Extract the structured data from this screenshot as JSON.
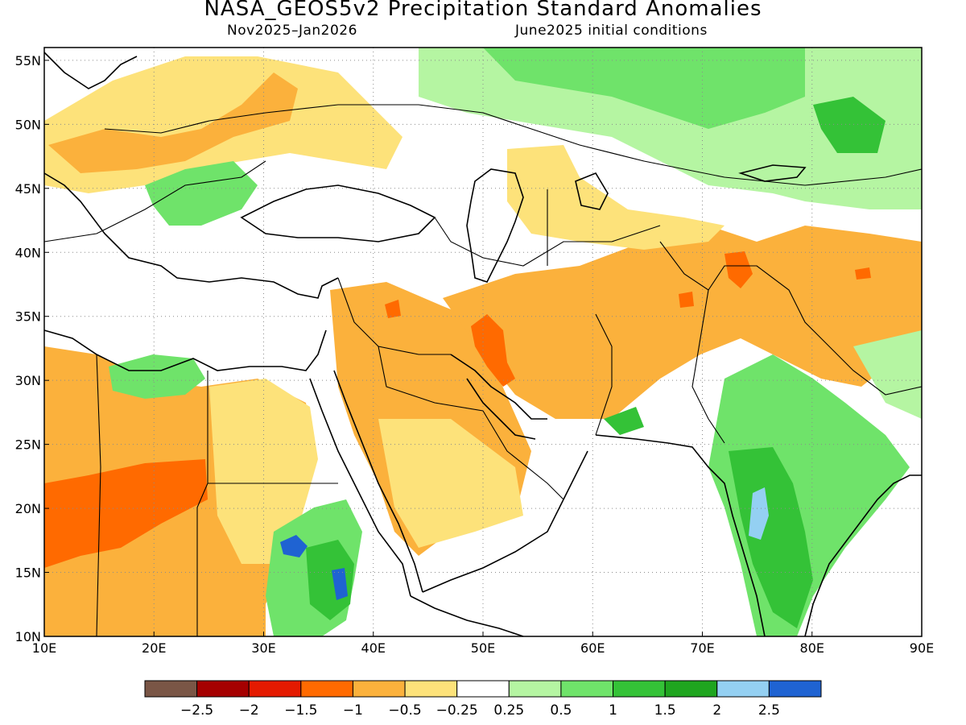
{
  "title": "NASA_GEOS5v2 Precipitation Standard Anomalies",
  "subtitle_left": "Nov2025–Jan2026",
  "subtitle_right": "June2025 initial conditions",
  "map": {
    "lon_range": [
      10,
      90
    ],
    "lat_range": [
      10,
      56
    ],
    "lon_ticks": [
      "10E",
      "20E",
      "30E",
      "40E",
      "50E",
      "60E",
      "70E",
      "80E",
      "90E"
    ],
    "lat_ticks": [
      "55N",
      "50N",
      "45N",
      "40N",
      "35N",
      "30N",
      "25N",
      "20N",
      "15N",
      "10N"
    ],
    "grid": "dotted"
  },
  "colorbar": {
    "colors": [
      "#7a5646",
      "#a50000",
      "#e41a00",
      "#ff6a00",
      "#fbb13c",
      "#fde27a",
      "#ffffff",
      "#b5f5a2",
      "#6fe36a",
      "#34c237",
      "#1fa51f",
      "#94d0f2",
      "#1f63d2"
    ],
    "labels": [
      "−2.5",
      "−2",
      "−1.5",
      "−1",
      "−0.5",
      "−0.25",
      "0.25",
      "0.5",
      "1",
      "1.5",
      "2",
      "2.5"
    ]
  }
}
